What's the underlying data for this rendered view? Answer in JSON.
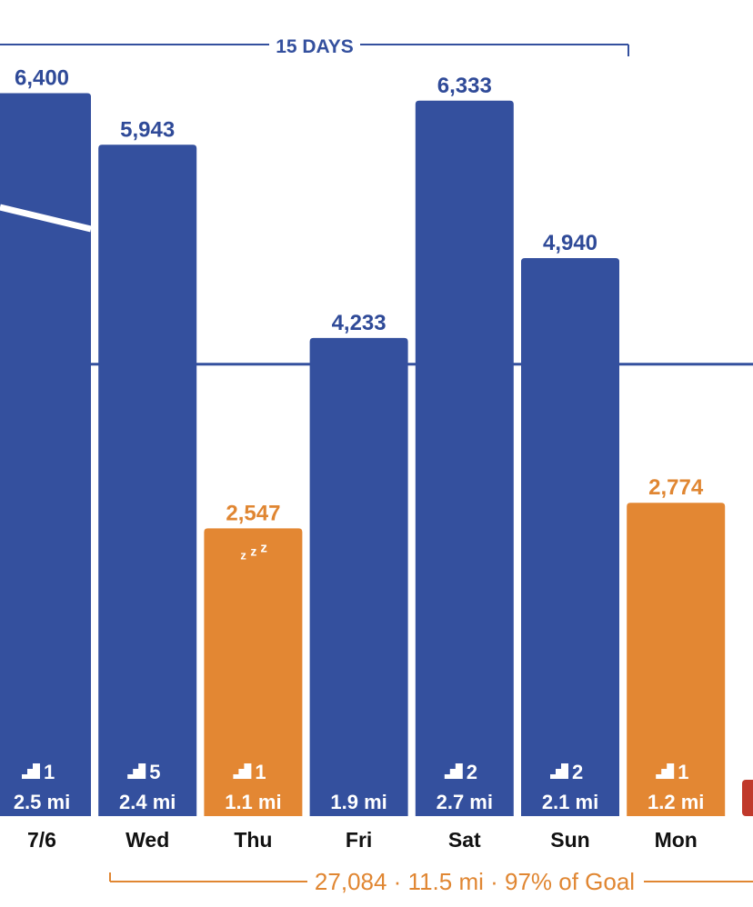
{
  "chart_data": {
    "type": "bar",
    "categories": [
      "7/6",
      "Wed",
      "Thu",
      "Fri",
      "Sat",
      "Sun",
      "Mon"
    ],
    "values": [
      6400,
      5943,
      2547,
      4233,
      6333,
      4940,
      2774
    ],
    "value_labels": [
      "6,400",
      "5,943",
      "2,547",
      "4,233",
      "6,333",
      "4,940",
      "2,774"
    ],
    "distances": [
      "2.5 mi",
      "2.4 mi",
      "1.1 mi",
      "1.9 mi",
      "2.7 mi",
      "2.1 mi",
      "1.2 mi"
    ],
    "flights": [
      "1",
      "5",
      "1",
      null,
      "2",
      "2",
      "1"
    ],
    "status": [
      "goal",
      "goal",
      "below",
      "goal",
      "goal",
      "goal",
      "below"
    ],
    "sleep_marker": [
      false,
      false,
      true,
      false,
      false,
      false,
      false
    ],
    "ylim": [
      0,
      7000
    ],
    "goal_line_value": 4000,
    "range_label": "15 DAYS",
    "summary": "27,084 · 11.5 mi · 97% of Goal",
    "sleep_text": "z z z"
  },
  "colors": {
    "goal_bar": "#34509e",
    "below_bar": "#e38733",
    "label_blue": "#2f4a98",
    "label_orange": "#e08632",
    "next_bar_partial": "#c0392b",
    "trend_line": "#ffffff"
  }
}
